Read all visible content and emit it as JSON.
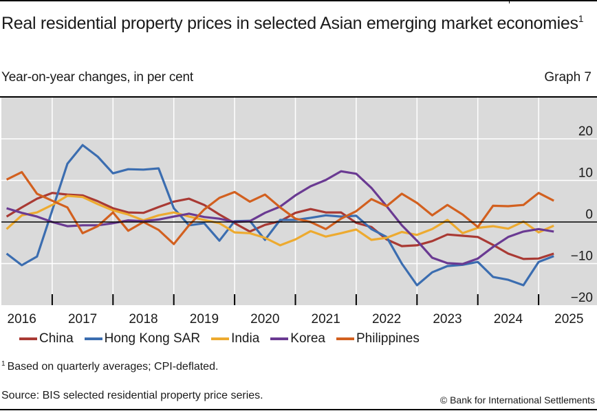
{
  "header": {
    "title": "Real residential property prices in selected Asian emerging market economies",
    "title_footnote_marker": "1",
    "subtitle": "Year-on-year changes, in per cent",
    "graph_number": "Graph 7"
  },
  "footer": {
    "footnote_marker": "1",
    "footnote": "Based on quarterly averages; CPI-deflated.",
    "source": "Source: BIS selected residential property price series.",
    "copyright": "© Bank for International Settlements"
  },
  "chart_data": {
    "type": "line",
    "title": "Real residential property prices in selected Asian emerging market economies",
    "xlabel": "",
    "ylabel": "Year-on-year changes, in per cent",
    "x_frequency": "quarterly",
    "x_start": "2016-Q1",
    "x_end": "2025-Q2",
    "x_tick_labels": [
      "2016",
      "2017",
      "2018",
      "2019",
      "2020",
      "2021",
      "2022",
      "2023",
      "2024",
      "2025"
    ],
    "y_tick_labels": [
      "20",
      "10",
      "0",
      "−10",
      "−20"
    ],
    "y_ticks": [
      20,
      10,
      0,
      -10,
      -20
    ],
    "ylim": [
      -20,
      30
    ],
    "y_axis_side": "right",
    "grid": true,
    "legend_position": "bottom",
    "background_color": "#DADADA",
    "series": [
      {
        "name": "China",
        "color": "#A93A34",
        "values": [
          1.3,
          3.5,
          5.6,
          7.0,
          6.6,
          6.4,
          5.0,
          3.3,
          2.3,
          2.2,
          3.6,
          4.9,
          5.6,
          4.1,
          1.8,
          -0.3,
          -2.3,
          -0.7,
          0.2,
          2.2,
          3.1,
          2.3,
          2.3,
          -0.2,
          -1.2,
          -4.2,
          -5.8,
          -5.6,
          -4.6,
          -3.0,
          -3.3,
          -3.6,
          -5.5,
          -7.6,
          -8.9,
          -8.8,
          -7.6
        ]
      },
      {
        "name": "Hong Kong SAR",
        "color": "#3B6DB0",
        "values": [
          -7.6,
          -10.4,
          -8.3,
          2.8,
          14.0,
          18.5,
          15.7,
          11.7,
          12.7,
          12.6,
          12.9,
          3.3,
          -0.8,
          -0.3,
          -4.5,
          0.2,
          0.3,
          -4.3,
          0.5,
          0.5,
          1.0,
          1.6,
          1.3,
          1.5,
          -1.7,
          -3.6,
          -10.0,
          -15.2,
          -12.1,
          -10.6,
          -10.3,
          -9.6,
          -13.2,
          -13.9,
          -15.2,
          -9.6,
          -8.2
        ]
      },
      {
        "name": "India",
        "color": "#EDAA2F",
        "values": [
          -1.7,
          1.6,
          2.3,
          4.1,
          6.3,
          6.0,
          4.3,
          2.8,
          1.8,
          0.4,
          1.6,
          2.3,
          1.3,
          0.5,
          -0.3,
          -2.5,
          -2.7,
          -3.8,
          -5.6,
          -4.2,
          -2.2,
          -3.5,
          -2.7,
          -1.8,
          -4.3,
          -3.8,
          -2.4,
          -3.1,
          -1.7,
          0.5,
          -2.7,
          -1.4,
          -1.0,
          -1.6,
          0.1,
          -2.5,
          -0.9
        ]
      },
      {
        "name": "Korea",
        "color": "#6A3A92",
        "values": [
          3.3,
          2.2,
          1.3,
          0.0,
          -1.0,
          -0.8,
          -0.8,
          -0.3,
          0.4,
          0.2,
          0.6,
          1.3,
          2.0,
          1.2,
          0.8,
          0.0,
          0.2,
          2.2,
          3.7,
          6.4,
          8.6,
          10.1,
          12.2,
          11.6,
          8.2,
          3.8,
          -0.8,
          -4.5,
          -8.6,
          -9.9,
          -10.1,
          -8.8,
          -6.0,
          -3.6,
          -2.3,
          -1.7,
          -2.3
        ]
      },
      {
        "name": "Philippines",
        "color": "#D2601F",
        "values": [
          10.2,
          12.0,
          6.8,
          5.1,
          3.5,
          -2.7,
          -1.0,
          2.3,
          -2.1,
          0.0,
          -1.9,
          -5.3,
          -0.8,
          3.0,
          5.8,
          7.2,
          4.9,
          6.6,
          3.5,
          0.8,
          0.0,
          -1.7,
          0.8,
          2.6,
          5.5,
          3.8,
          6.8,
          4.6,
          1.6,
          4.1,
          1.8,
          -1.2,
          3.9,
          3.8,
          4.1,
          7.0,
          5.1
        ]
      }
    ]
  }
}
